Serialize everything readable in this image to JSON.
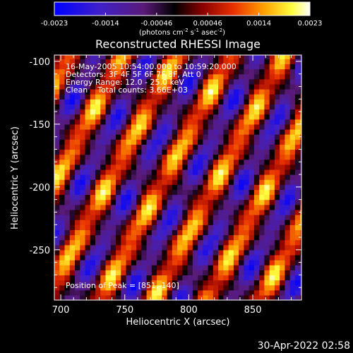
{
  "chart_data": {
    "type": "heatmap",
    "title": "Reconstructed RHESSI Image",
    "xlabel": "Heliocentric X (arcsec)",
    "ylabel": "Heliocentric Y (arcsec)",
    "xlim": [
      695,
      888
    ],
    "ylim": [
      -290,
      -95
    ],
    "x_ticks": [
      700,
      750,
      800,
      850
    ],
    "y_ticks": [
      -100,
      -150,
      -200,
      -250
    ],
    "colorbar": {
      "colormap": "RHESSI hot (blue-purple-black-red-orange-yellow-white)",
      "range": [
        -0.0023,
        0.0023
      ],
      "tick_labels": [
        "-0.0023",
        "-0.0014",
        "-0.00046",
        "0.00046",
        "0.0014",
        "0.0023"
      ],
      "units_prefix": "(photons cm",
      "units_sup1": "-2",
      "units_mid": " s",
      "units_sup2": "-1",
      "units_mid2": " asec",
      "units_sup3": "-2",
      "units_suffix": ")"
    },
    "annotation_lines": [
      "16-May-2005 10:54:00.000 to 10:59:20.000",
      "Detectors: 3F 4F 5F 6F 7F 8F, Att 0",
      "Energy Range: 12.0 - 25.0 keV",
      "Clean    Total counts: 3.66E+03"
    ],
    "peak_label": "Position of Peak = [851,-140]",
    "peak_position": [
      851,
      -140
    ],
    "pattern": {
      "description": "diagonal fringe stripes rising to upper right",
      "fringe_period_arcsec": 42,
      "stripe_slope": 1.9
    }
  },
  "footer": {
    "timestamp": "30-Apr-2022 02:58"
  }
}
